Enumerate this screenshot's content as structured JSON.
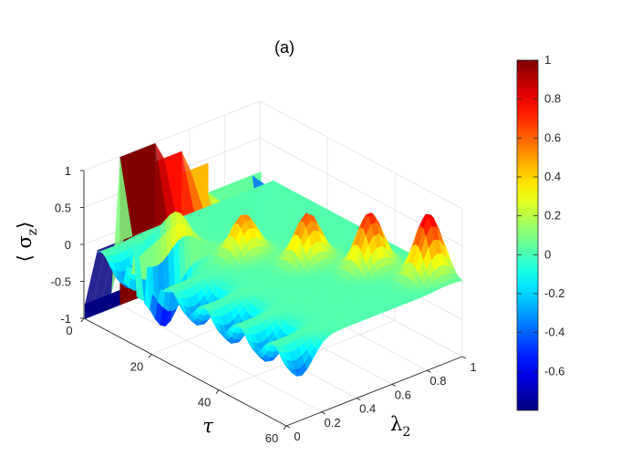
{
  "chart_data": {
    "type": "surface3d",
    "title": "(a)",
    "xlabel": "τ",
    "ylabel": "λ",
    "ylabel_subscript": "2",
    "zlabel_left": "⟨ σ",
    "zlabel_subscript": "z",
    "zlabel_right": "⟩",
    "xlim": [
      0,
      60
    ],
    "ylim": [
      0,
      1
    ],
    "zlim": [
      -1,
      1
    ],
    "x_ticks": [
      "0",
      "20",
      "40",
      "60"
    ],
    "y_ticks": [
      "0",
      "0.2",
      "0.4",
      "0.6",
      "0.8",
      "1"
    ],
    "z_ticks": [
      "-1",
      "-0.5",
      "0",
      "0.5",
      "1"
    ],
    "colormap": "jet",
    "colorbar": {
      "range": [
        -0.8,
        1
      ],
      "ticks": [
        "1",
        "0.8",
        "0.6",
        "0.4",
        "0.2",
        "0",
        "-0.2",
        "-0.4",
        "-0.6"
      ]
    },
    "wall_at_tau0": {
      "description_levels": [
        -0.8,
        1.0,
        0.75,
        0.45,
        0.05
      ],
      "lambda_bands": [
        [
          0,
          0.2
        ],
        [
          0.2,
          0.4
        ],
        [
          0.4,
          0.55
        ],
        [
          0.55,
          0.7
        ],
        [
          0.7,
          1.0
        ]
      ]
    },
    "surface_profile": {
      "baseline": 0.02,
      "peaks": [
        {
          "tau": 14,
          "lambda": 0.25,
          "z": 0.35
        },
        {
          "tau": 24,
          "lambda": 0.45,
          "z": 0.55
        },
        {
          "tau": 34,
          "lambda": 0.62,
          "z": 0.65
        },
        {
          "tau": 44,
          "lambda": 0.78,
          "z": 0.75
        },
        {
          "tau": 54,
          "lambda": 0.92,
          "z": 0.85
        }
      ],
      "oscillation_min": -0.8
    },
    "grid": true
  }
}
